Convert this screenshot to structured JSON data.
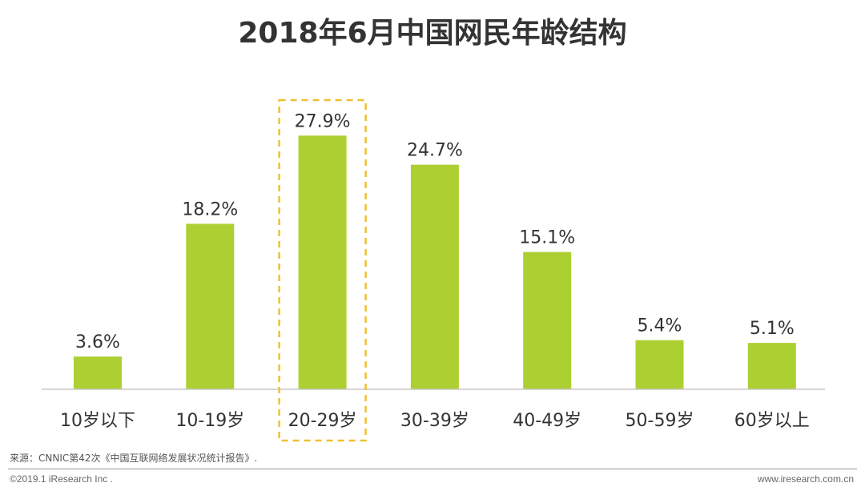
{
  "chart_data": {
    "type": "bar",
    "title": "2018年6月中国网民年龄结构",
    "categories": [
      "10岁以下",
      "10-19岁",
      "20-29岁",
      "30-39岁",
      "40-49岁",
      "50-59岁",
      "60岁以上"
    ],
    "values": [
      3.6,
      18.2,
      27.9,
      24.7,
      15.1,
      5.4,
      5.1
    ],
    "value_labels": [
      "3.6%",
      "18.2%",
      "27.9%",
      "24.7%",
      "15.1%",
      "5.4%",
      "5.1%"
    ],
    "unit": "%",
    "highlight_category": "20-29岁",
    "xlabel": "",
    "ylabel": "",
    "ylim": [
      0,
      30
    ],
    "grid": false
  },
  "colors": {
    "bar": "#acd032",
    "highlight_border": "#f0c030",
    "axis": "#c8c8c8",
    "label_text": "#333333"
  },
  "source": "来源：CNNIC第42次《中国互联网络发展状况统计报告》.",
  "copyright": "©2019.1 iResearch Inc .",
  "website": "www.iresearch.com.cn"
}
